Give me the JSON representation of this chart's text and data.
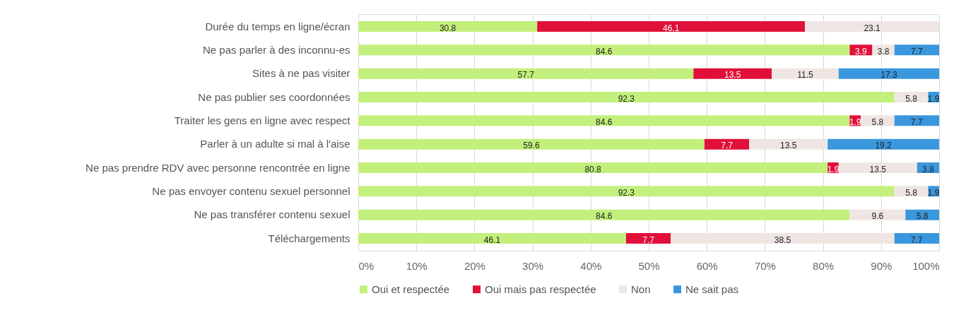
{
  "chart_data": {
    "type": "bar",
    "orientation": "horizontal",
    "stacked": true,
    "data_labels": true,
    "grid": "x",
    "legend": "bottom",
    "categories": [
      "Durée du temps en ligne/écran",
      "Ne pas parler à des inconnu-es",
      "Sites à ne pas visiter",
      "Ne pas publier ses coordonnées",
      "Traiter les gens en ligne avec respect",
      "Parler à un adulte si mal à l'aise",
      "Ne pas prendre RDV avec personne rencontrée en ligne",
      "Ne pas envoyer contenu sexuel personnel",
      "Ne pas transférer contenu sexuel",
      "Téléchargements"
    ],
    "series": [
      {
        "name": "Oui et respectée",
        "color": "#c3f07c",
        "values": [
          30.8,
          84.6,
          57.7,
          92.3,
          84.6,
          59.6,
          80.8,
          92.3,
          84.6,
          46.1
        ]
      },
      {
        "name": "Oui mais pas respectée",
        "color": "#e0103a",
        "values": [
          46.1,
          3.9,
          13.5,
          null,
          1.9,
          7.7,
          1.9,
          null,
          null,
          7.7
        ]
      },
      {
        "name": "Non",
        "color": "#efe6e4",
        "values": [
          23.1,
          3.8,
          11.5,
          5.8,
          5.8,
          13.5,
          13.5,
          5.8,
          9.6,
          38.5
        ]
      },
      {
        "name": "Ne sait pas",
        "color": "#3b97dd",
        "values": [
          null,
          7.7,
          17.3,
          1.9,
          7.7,
          19.2,
          3.8,
          1.9,
          5.8,
          7.7
        ]
      }
    ],
    "xlim": [
      0,
      100
    ],
    "xticks": [
      {
        "value": 0,
        "label": "0%"
      },
      {
        "value": 10,
        "label": "10%"
      },
      {
        "value": 20,
        "label": "20%"
      },
      {
        "value": 30,
        "label": "30%"
      },
      {
        "value": 40,
        "label": "40%"
      },
      {
        "value": 50,
        "label": "50%"
      },
      {
        "value": 60,
        "label": "60%"
      },
      {
        "value": 70,
        "label": "70%"
      },
      {
        "value": 80,
        "label": "80%"
      },
      {
        "value": 90,
        "label": "90%"
      },
      {
        "value": 100,
        "label": "100%"
      }
    ]
  }
}
